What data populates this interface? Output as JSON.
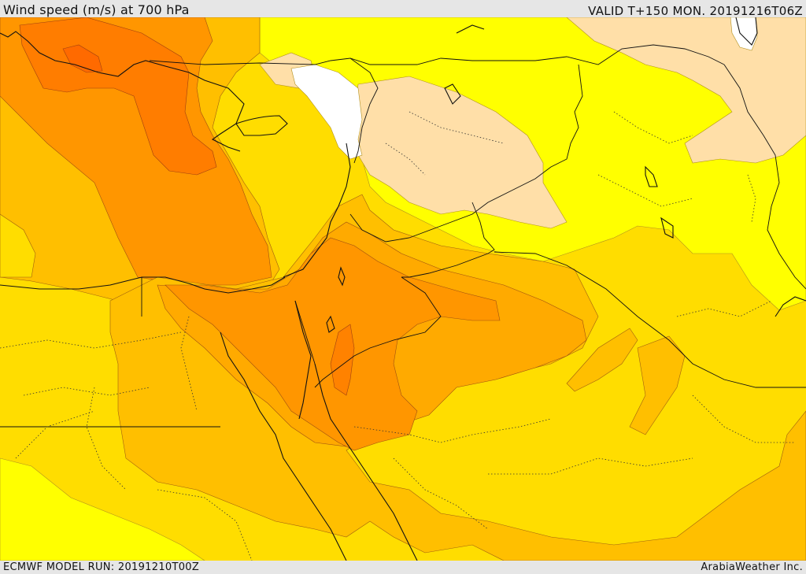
{
  "header": {
    "title": "Wind speed (m/s) at 700 hPa",
    "valid": "VALID T+150 MON. 20191216T06Z"
  },
  "footer": {
    "model_run": "ECMWF MODEL RUN: 20191210T00Z",
    "credit": "ArabiaWeather Inc."
  },
  "map": {
    "variable": "wind speed",
    "units": "m/s",
    "level": "700 hPa",
    "colors": {
      "no_fill": "#ffffff",
      "lightest": "#ffdfa8",
      "light": "#ffff00",
      "medium_yellow": "#ffdd00",
      "gold": "#ffbf00",
      "orange_light": "#ffaa00",
      "orange": "#ff9600",
      "orange_dark": "#ff7d00"
    },
    "layers": [
      "filled wind-speed contours",
      "coastlines",
      "country borders",
      "province borders (dotted)"
    ]
  }
}
